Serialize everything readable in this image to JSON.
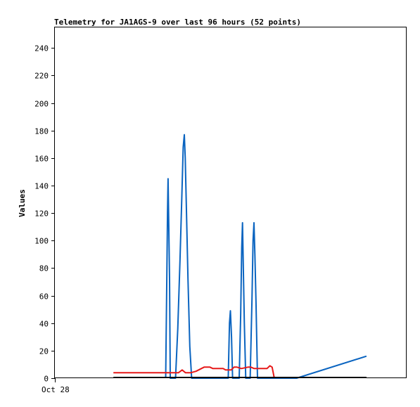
{
  "chart_data": {
    "type": "line",
    "title": "Telemetry for JA1AGS-9 over last 96 hours (52 points)",
    "xlabel": "",
    "ylabel": "Values",
    "x_tick_labels": [
      "Oct 28"
    ],
    "xlim": [
      0,
      96
    ],
    "ylim": [
      0,
      255
    ],
    "y_ticks": [
      0,
      20,
      40,
      60,
      80,
      100,
      120,
      140,
      160,
      180,
      200,
      220,
      240
    ],
    "grid": false,
    "legend": "none",
    "series": [
      {
        "color": "#0a64c0",
        "points": [
          [
            30.3,
            0
          ],
          [
            30.6,
            72
          ],
          [
            30.8,
            120
          ],
          [
            30.95,
            145
          ],
          [
            31.1,
            118
          ],
          [
            31.35,
            72
          ],
          [
            31.55,
            0
          ],
          [
            33.0,
            0
          ],
          [
            33.6,
            36
          ],
          [
            34.2,
            85
          ],
          [
            34.7,
            131
          ],
          [
            35.1,
            168
          ],
          [
            35.4,
            177
          ],
          [
            35.65,
            160
          ],
          [
            36.0,
            120
          ],
          [
            36.4,
            72
          ],
          [
            36.9,
            23
          ],
          [
            37.4,
            0
          ],
          [
            47.4,
            0
          ],
          [
            47.75,
            40
          ],
          [
            48.0,
            49
          ],
          [
            48.3,
            30
          ],
          [
            48.6,
            0
          ],
          [
            50.4,
            0
          ],
          [
            50.8,
            46
          ],
          [
            51.1,
            95
          ],
          [
            51.3,
            113
          ],
          [
            51.5,
            85
          ],
          [
            51.8,
            40
          ],
          [
            52.2,
            0
          ],
          [
            53.4,
            0
          ],
          [
            53.9,
            58
          ],
          [
            54.2,
            100
          ],
          [
            54.45,
            113
          ],
          [
            54.7,
            90
          ],
          [
            55.0,
            55
          ],
          [
            55.4,
            0
          ],
          [
            66.1,
            0
          ],
          [
            85.2,
            16
          ]
        ]
      },
      {
        "color": "#e61919",
        "points": [
          [
            16.0,
            4
          ],
          [
            33.8,
            4
          ],
          [
            34.8,
            6
          ],
          [
            35.7,
            4
          ],
          [
            37.2,
            4
          ],
          [
            38.6,
            5
          ],
          [
            40.8,
            8
          ],
          [
            42.4,
            8
          ],
          [
            43.2,
            7
          ],
          [
            46.0,
            7
          ],
          [
            46.7,
            6
          ],
          [
            47.6,
            6
          ],
          [
            48.2,
            6
          ],
          [
            49.0,
            8
          ],
          [
            49.8,
            8
          ],
          [
            51.0,
            7
          ],
          [
            52.8,
            8
          ],
          [
            53.6,
            8
          ],
          [
            54.5,
            7
          ],
          [
            57.0,
            7
          ],
          [
            58.0,
            7
          ],
          [
            58.8,
            9
          ],
          [
            59.4,
            8
          ],
          [
            60.0,
            0
          ]
        ]
      },
      {
        "color": "#000000",
        "points": [
          [
            16.0,
            0.5
          ],
          [
            85.2,
            0.5
          ]
        ]
      }
    ]
  }
}
